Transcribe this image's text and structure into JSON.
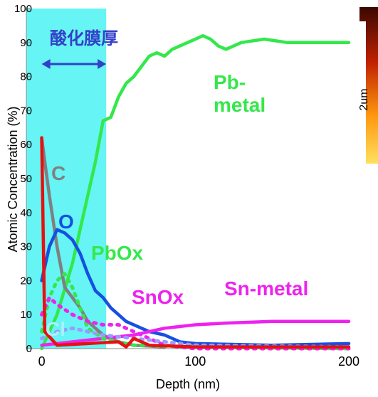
{
  "chart_data": {
    "type": "line",
    "y_label": "Atomic Concentration (%)",
    "x_label": "Depth (nm)",
    "xlim": [
      -10,
      200
    ],
    "ylim": [
      0,
      100
    ],
    "xticks": [
      0,
      100,
      200
    ],
    "yticks": [
      0,
      10,
      20,
      30,
      40,
      50,
      60,
      70,
      80,
      90,
      100
    ],
    "shade": {
      "range": [
        -10,
        42
      ],
      "color": "#66f4f4",
      "label": "酸化膜厚",
      "label_color": "#3340c8"
    },
    "series": [
      {
        "name": "Pb-metal",
        "color": "#33e84a",
        "style": "solid",
        "x": [
          0,
          10,
          20,
          30,
          35,
          40,
          45,
          50,
          55,
          60,
          65,
          70,
          75,
          80,
          85,
          90,
          95,
          100,
          105,
          110,
          115,
          120,
          130,
          145,
          160,
          180,
          200
        ],
        "values": [
          0,
          10,
          25,
          45,
          55,
          67,
          68,
          74,
          78,
          80,
          83,
          86,
          87,
          86,
          88,
          89,
          90,
          91,
          92,
          91,
          89,
          88,
          90,
          91,
          90,
          90,
          90
        ]
      },
      {
        "name": "C",
        "color": "#808080",
        "style": "solid",
        "x": [
          0,
          2,
          5,
          10,
          15,
          20,
          25,
          30,
          35,
          40,
          45,
          50,
          60,
          80
        ],
        "values": [
          62,
          55,
          45,
          30,
          18,
          15,
          12,
          8,
          6,
          4,
          3,
          2,
          1,
          0.5
        ]
      },
      {
        "name": "O",
        "color": "#1650e0",
        "style": "solid",
        "x": [
          0,
          5,
          10,
          15,
          20,
          25,
          30,
          35,
          40,
          45,
          50,
          55,
          60,
          70,
          80,
          90,
          100,
          150,
          200
        ],
        "values": [
          20,
          30,
          35,
          34,
          32,
          28,
          22,
          17,
          15,
          12,
          10,
          8,
          7,
          5,
          4,
          2,
          1.5,
          1,
          1.5
        ]
      },
      {
        "name": "Sn-metal",
        "color": "#ee22ee",
        "style": "solid",
        "x": [
          0,
          20,
          40,
          50,
          60,
          70,
          80,
          100,
          120,
          150,
          200
        ],
        "values": [
          1,
          2,
          3,
          3.5,
          4,
          5,
          6,
          7,
          7.5,
          8,
          8
        ]
      },
      {
        "name": "PbOx",
        "color": "#33e84a",
        "style": "dotted",
        "x": [
          0,
          5,
          10,
          15,
          20,
          25,
          30,
          40,
          50,
          60,
          100,
          200
        ],
        "values": [
          5,
          15,
          20,
          22,
          18,
          12,
          6,
          3,
          2,
          1,
          0.5,
          0
        ]
      },
      {
        "name": "SnOx",
        "color": "#ee22ee",
        "style": "dotted",
        "x": [
          0,
          5,
          10,
          20,
          30,
          40,
          50,
          60,
          70,
          80,
          100,
          200
        ],
        "values": [
          10,
          15,
          13,
          10,
          8,
          7,
          7,
          5,
          3,
          1,
          0,
          0
        ]
      },
      {
        "name": "Cl",
        "color": "#9a9aff",
        "style": "dotted",
        "label_color": "#a8f0ff",
        "x": [
          0,
          10,
          20,
          30,
          40,
          60,
          80,
          100,
          200
        ],
        "values": [
          3,
          5,
          6,
          5,
          4,
          3,
          2,
          1,
          0.5
        ]
      },
      {
        "color": "#e81010",
        "style": "solid",
        "x": [
          0,
          2,
          10,
          50,
          55,
          60,
          70,
          100,
          200
        ],
        "values": [
          62,
          5,
          1,
          2,
          0.5,
          3,
          1,
          0.5,
          0.5
        ]
      }
    ]
  },
  "inset": {
    "label": "2um"
  }
}
